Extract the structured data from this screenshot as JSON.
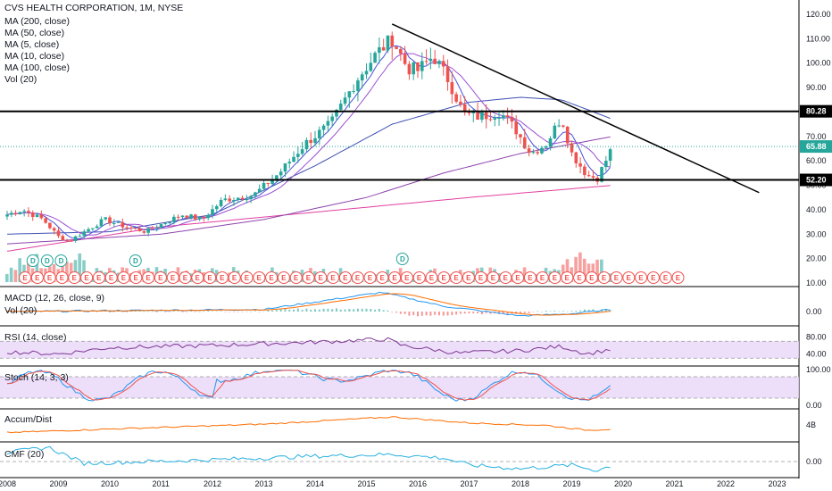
{
  "header": {
    "title": "CVS HEALTH CORPORATION, 1M, NYSE",
    "legend": [
      "MA (200, close)",
      "MA (50, close)",
      "MA (5, close)",
      "MA (10, close)",
      "MA (100, close)",
      "Vol (20)"
    ]
  },
  "panes": {
    "macd": {
      "label": "MACD (12, 26, close, 9)",
      "vol_label": "Vol (20)",
      "ticks": [
        "0.00"
      ]
    },
    "rsi": {
      "label": "RSI (14, close)",
      "ticks": [
        "80.00",
        "40.00"
      ]
    },
    "stoch": {
      "label": "Stoch (14, 3, 3)",
      "ticks": [
        "100.00",
        "0.00"
      ]
    },
    "accum": {
      "label": "Accum/Dist",
      "ticks": [
        "4B"
      ]
    },
    "cmf": {
      "label": "CMF (20)",
      "ticks": [
        "0.00"
      ]
    }
  },
  "colors": {
    "up": "#26a69a",
    "down": "#ef5350",
    "ma200": "#e040a0",
    "ma100": "#8e44ad",
    "ma50": "#3f51b5",
    "ma5": "#4a4ed8",
    "ma10": "#9c4fd0",
    "macd": "#2196f3",
    "signal": "#ff6d00",
    "rsi": "#7e3794",
    "stoch_k": "#2196f3",
    "stoch_d": "#ef5350",
    "accum": "#ff6d00",
    "cmf": "#26b0e0",
    "band": "#e9d6f7"
  },
  "chart_data": {
    "type": "candlestick",
    "title": "CVS HEALTH CORPORATION, 1M, NYSE",
    "x_axis_labels": [
      "2008",
      "2009",
      "2010",
      "2011",
      "2012",
      "2013",
      "2014",
      "2015",
      "2016",
      "2017",
      "2018",
      "2019",
      "2020",
      "2021",
      "2022",
      "2023"
    ],
    "y_ticks": [
      "120.00",
      "110.00",
      "100.00",
      "90.00",
      "80.00",
      "70.00",
      "60.00",
      "50.00",
      "40.00",
      "30.00",
      "20.00",
      "10.00"
    ],
    "ylim": [
      10,
      120
    ],
    "price_labels": [
      {
        "text": "80.28",
        "value": 80.28
      },
      {
        "text": "65.88",
        "value": 65.88
      },
      {
        "text": "52.20",
        "value": 52.2
      }
    ],
    "horizontal_lines": [
      80.28,
      52.2
    ],
    "last_price": 65.88,
    "trendline": [
      {
        "date": 2015.5,
        "price": 116
      },
      {
        "date": 2022.65,
        "price": 47
      }
    ],
    "close_keypoints": [
      [
        2008.0,
        38
      ],
      [
        2008.3,
        40
      ],
      [
        2008.7,
        36
      ],
      [
        2009.0,
        29
      ],
      [
        2009.2,
        27
      ],
      [
        2009.5,
        31
      ],
      [
        2009.9,
        36
      ],
      [
        2010.3,
        33
      ],
      [
        2010.7,
        31
      ],
      [
        2011.0,
        34
      ],
      [
        2011.4,
        38
      ],
      [
        2011.8,
        36
      ],
      [
        2012.2,
        44
      ],
      [
        2012.8,
        46
      ],
      [
        2013.3,
        55
      ],
      [
        2013.8,
        67
      ],
      [
        2014.3,
        75
      ],
      [
        2014.8,
        93
      ],
      [
        2015.2,
        104
      ],
      [
        2015.5,
        110
      ],
      [
        2015.8,
        98
      ],
      [
        2016.0,
        97
      ],
      [
        2016.3,
        103
      ],
      [
        2016.6,
        93
      ],
      [
        2016.9,
        79
      ],
      [
        2017.2,
        78
      ],
      [
        2017.6,
        80
      ],
      [
        2017.9,
        73
      ],
      [
        2018.2,
        63
      ],
      [
        2018.5,
        67
      ],
      [
        2018.8,
        78
      ],
      [
        2019.0,
        63
      ],
      [
        2019.3,
        54
      ],
      [
        2019.5,
        53
      ],
      [
        2019.8,
        66
      ]
    ],
    "ma200_keypoints": [
      [
        2008.0,
        23
      ],
      [
        2011.0,
        33
      ],
      [
        2013.0,
        37
      ],
      [
        2015.0,
        41
      ],
      [
        2017.0,
        45
      ],
      [
        2019.8,
        50
      ]
    ],
    "ma100_keypoints": [
      [
        2008.0,
        26
      ],
      [
        2011.0,
        30
      ],
      [
        2013.0,
        36
      ],
      [
        2015.0,
        45
      ],
      [
        2016.5,
        55
      ],
      [
        2018.0,
        63
      ],
      [
        2019.8,
        70
      ]
    ],
    "ma50_keypoints": [
      [
        2008.0,
        30
      ],
      [
        2010.0,
        31
      ],
      [
        2012.0,
        38
      ],
      [
        2014.0,
        58
      ],
      [
        2015.5,
        75
      ],
      [
        2017.0,
        84
      ],
      [
        2018.0,
        86
      ],
      [
        2018.8,
        85
      ],
      [
        2019.8,
        77
      ]
    ],
    "volume_markers": [
      "D",
      "D",
      "D",
      "D",
      "E",
      "E",
      "E",
      "E",
      "E",
      "E",
      "E",
      "E",
      "E",
      "E",
      "E",
      "E",
      "E",
      "E",
      "E",
      "E",
      "E",
      "E",
      "E",
      "E",
      "E",
      "E",
      "E",
      "E",
      "E",
      "E",
      "E",
      "E",
      "D",
      "E",
      "E",
      "E",
      "E",
      "E",
      "E",
      "E",
      "E",
      "E",
      "E",
      "E",
      "E",
      "E",
      "E",
      "E",
      "E",
      "E",
      "E",
      "E",
      "E",
      "E",
      "E",
      "E",
      "E",
      "E",
      "E"
    ],
    "indicators": {
      "rsi": {
        "range": [
          0,
          100
        ],
        "band": [
          30,
          70
        ]
      },
      "stoch": {
        "range": [
          0,
          100
        ],
        "band": [
          20,
          80
        ]
      }
    }
  }
}
